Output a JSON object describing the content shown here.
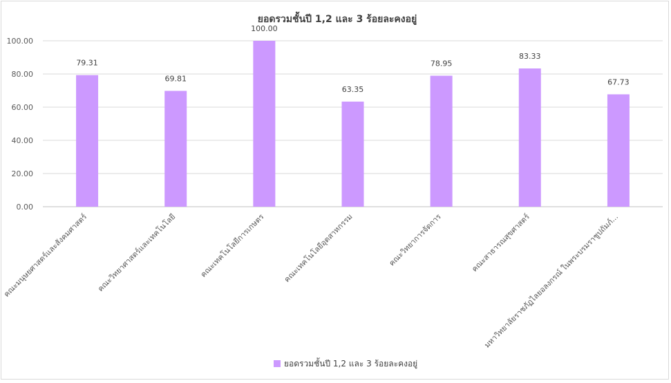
{
  "chart_data": {
    "type": "bar",
    "title": "ยอดรวมชั้นปี 1,2 และ 3 ร้อยละคงอยู่",
    "xlabel": "",
    "ylabel": "",
    "ylim": [
      0,
      100
    ],
    "yticks": [
      "0.00",
      "20.00",
      "40.00",
      "60.00",
      "80.00",
      "100.00"
    ],
    "categories": [
      "คณะมนุษยศาสตร์และสังคมศาสตร์",
      "คณะวิทยาศาสตร์และเทคโนโลยี",
      "คณะเทคโนโลยีการเกษตร",
      "คณะเทคโนโลยีอุตสาหกรรม",
      "คณะวิทยาการจัดการ",
      "คณะสาธารณสุขศาสตร์",
      "มหาวิทยาลัยราชภัฏไลยอลงกรณ์ ในพระบรมราชูปถัมภ์..."
    ],
    "series": [
      {
        "name": "ยอดรวมชั้นปี 1,2 และ 3 ร้อยละคงอยู่",
        "values": [
          79.31,
          69.81,
          100.0,
          63.35,
          78.95,
          83.33,
          67.73
        ],
        "labels": [
          "79.31",
          "69.81",
          "100.00",
          "63.35",
          "78.95",
          "83.33",
          "67.73"
        ],
        "color": "#cc99ff"
      }
    ],
    "grid": true,
    "legend": "bottom"
  }
}
